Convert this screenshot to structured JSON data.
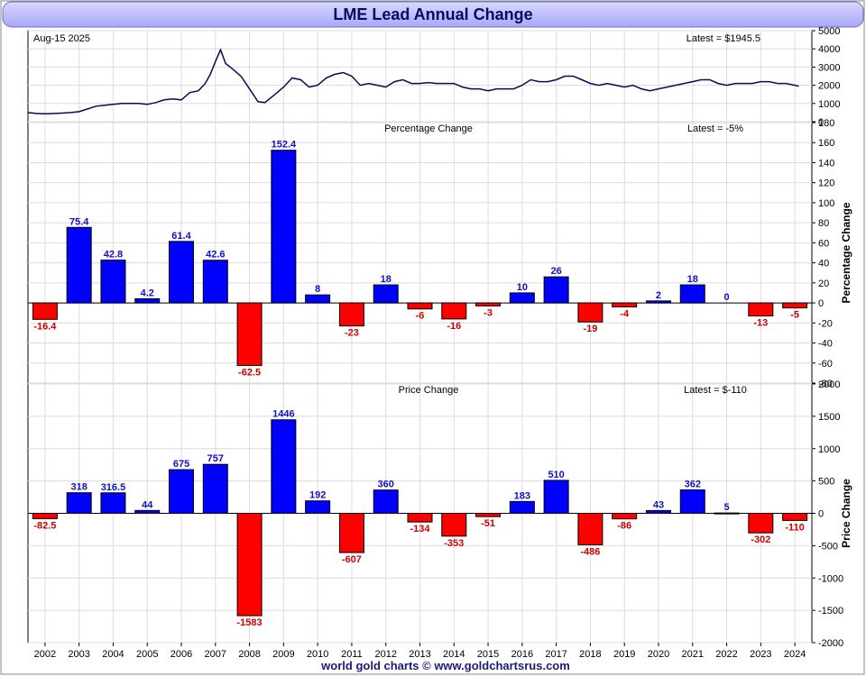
{
  "title": "LME Lead Annual Change",
  "footer": "world gold charts © www.goldchartsrus.com",
  "colors": {
    "positive": "#0000ff",
    "negative": "#ff0000",
    "line": "#0a0a55",
    "title_bg": "#bbbbff"
  },
  "chart_data": [
    {
      "type": "line",
      "date_label": "Aug-15  2025",
      "latest_label": "Latest = $1945.5",
      "ylim": [
        0,
        5000
      ],
      "yticks": [
        0,
        1000,
        2000,
        3000,
        4000,
        5000
      ],
      "x": [
        2002.0,
        2002.25,
        2002.5,
        2002.75,
        2003.0,
        2003.25,
        2003.5,
        2003.75,
        2004.0,
        2004.25,
        2004.5,
        2004.75,
        2005.0,
        2005.25,
        2005.5,
        2005.75,
        2006.0,
        2006.25,
        2006.5,
        2006.75,
        2007.0,
        2007.2,
        2007.35,
        2007.5,
        2007.65,
        2007.8,
        2008.0,
        2008.25,
        2008.5,
        2008.75,
        2008.95,
        2009.25,
        2009.5,
        2009.75,
        2010.0,
        2010.25,
        2010.5,
        2010.75,
        2011.0,
        2011.25,
        2011.5,
        2011.75,
        2012.0,
        2012.25,
        2012.5,
        2012.75,
        2013.0,
        2013.25,
        2013.5,
        2013.75,
        2014.0,
        2014.25,
        2014.5,
        2014.75,
        2015.0,
        2015.25,
        2015.5,
        2015.75,
        2016.0,
        2016.25,
        2016.5,
        2016.75,
        2017.0,
        2017.25,
        2017.5,
        2017.75,
        2018.0,
        2018.25,
        2018.5,
        2018.75,
        2019.0,
        2019.25,
        2019.5,
        2019.75,
        2020.0,
        2020.25,
        2020.5,
        2020.75,
        2021.0,
        2021.25,
        2021.5,
        2021.75,
        2022.0,
        2022.25,
        2022.5,
        2022.75,
        2023.0,
        2023.25,
        2023.5,
        2023.75,
        2024.0,
        2024.25,
        2024.5,
        2024.62
      ],
      "y": [
        500,
        450,
        430,
        450,
        470,
        500,
        550,
        700,
        850,
        900,
        950,
        1000,
        1000,
        1000,
        950,
        1050,
        1200,
        1250,
        1200,
        1600,
        1700,
        2100,
        2600,
        3300,
        3950,
        3200,
        2900,
        2500,
        1800,
        1100,
        1050,
        1500,
        1900,
        2400,
        2300,
        1900,
        2000,
        2400,
        2600,
        2700,
        2500,
        2000,
        2100,
        2000,
        1900,
        2200,
        2300,
        2100,
        2100,
        2150,
        2100,
        2100,
        2100,
        1900,
        1800,
        1800,
        1700,
        1800,
        1800,
        1800,
        2000,
        2300,
        2200,
        2200,
        2300,
        2500,
        2500,
        2300,
        2100,
        2000,
        2100,
        2000,
        1900,
        2000,
        1800,
        1700,
        1800,
        1900,
        2000,
        2100,
        2200,
        2300,
        2300,
        2100,
        2000,
        2100,
        2100,
        2100,
        2200,
        2200,
        2100,
        2100,
        2000,
        1950
      ]
    },
    {
      "type": "bar",
      "title": "Percentage Change",
      "latest_label": "Latest = -5%",
      "ylabel": "Percentage Change",
      "ylim": [
        -80,
        180
      ],
      "yticks": [
        -80,
        -60,
        -40,
        -20,
        0,
        20,
        40,
        60,
        80,
        100,
        120,
        140,
        160,
        180
      ],
      "categories": [
        "2002",
        "2003",
        "2004",
        "2005",
        "2006",
        "2007",
        "2008",
        "2009",
        "2010",
        "2011",
        "2012",
        "2013",
        "2014",
        "2015",
        "2016",
        "2017",
        "2018",
        "2019",
        "2020",
        "2021",
        "2022",
        "2023",
        "2024"
      ],
      "values": [
        -16.4,
        75.4,
        42.8,
        4.2,
        61.4,
        42.6,
        -62.5,
        152.4,
        8,
        -23,
        18,
        -6,
        -16,
        -3,
        10,
        26,
        -19,
        -4,
        2,
        18,
        0,
        -13,
        -5
      ],
      "labels": [
        "-16.4",
        "75.4",
        "42.8",
        "4.2",
        "61.4",
        "42.6",
        "-62.5",
        "152.4",
        "8",
        "-23",
        "18",
        "-6",
        "-16",
        "-3",
        "10",
        "26",
        "-19",
        "-4",
        "2",
        "18",
        "0",
        "-13",
        "-5"
      ]
    },
    {
      "type": "bar",
      "title": "Price Change",
      "latest_label": "Latest = $-110",
      "ylabel": "Price Change",
      "ylim": [
        -2000,
        2000
      ],
      "yticks": [
        -2000,
        -1500,
        -1000,
        -500,
        0,
        500,
        1000,
        1500,
        2000
      ],
      "categories": [
        "2002",
        "2003",
        "2004",
        "2005",
        "2006",
        "2007",
        "2008",
        "2009",
        "2010",
        "2011",
        "2012",
        "2013",
        "2014",
        "2015",
        "2016",
        "2017",
        "2018",
        "2019",
        "2020",
        "2021",
        "2022",
        "2023",
        "2024"
      ],
      "values": [
        -82.5,
        318,
        316.5,
        44,
        675,
        757,
        -1583,
        1446,
        192,
        -607,
        360,
        -134,
        -353,
        -51,
        183,
        510,
        -486,
        -86,
        43,
        362,
        5,
        -302,
        -110
      ],
      "labels": [
        "-82.5",
        "318",
        "316.5",
        "44",
        "675",
        "757",
        "-1583",
        "1446",
        "192",
        "-607",
        "360",
        "-134",
        "-353",
        "-51",
        "183",
        "510",
        "-486",
        "-86",
        "43",
        "362",
        "5",
        "-302",
        "-110"
      ]
    }
  ]
}
